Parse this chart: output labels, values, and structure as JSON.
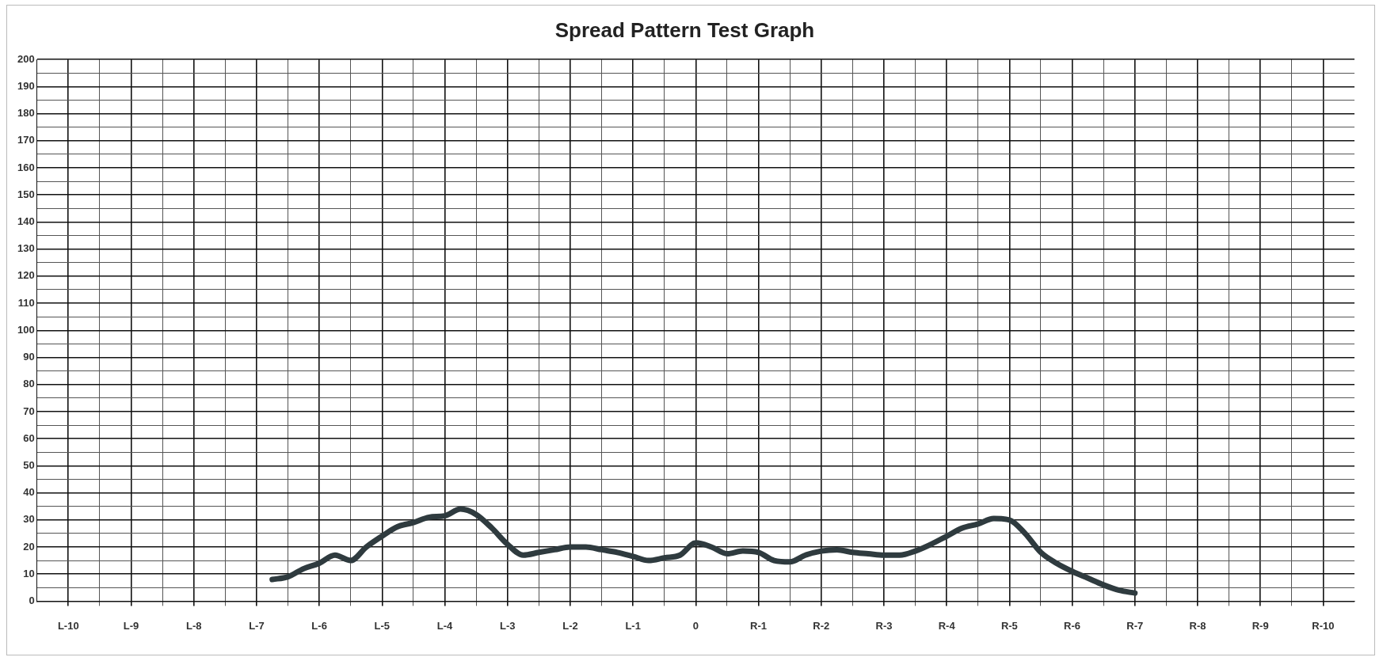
{
  "chart_data": {
    "type": "line",
    "title": "Spread Pattern Test Graph",
    "categories": [
      "L-10",
      null,
      null,
      null,
      "L-9",
      null,
      null,
      null,
      "L-8",
      null,
      null,
      null,
      "L-7",
      null,
      null,
      null,
      "L-6",
      null,
      null,
      null,
      "L-5",
      null,
      null,
      null,
      "L-4",
      null,
      null,
      null,
      "L-3",
      null,
      null,
      null,
      "L-2",
      null,
      null,
      null,
      "L-1",
      null,
      null,
      null,
      "0",
      null,
      null,
      null,
      "R-1",
      null,
      null,
      null,
      "R-2",
      null,
      null,
      null,
      "R-3",
      null,
      null,
      null,
      "R-4",
      null,
      null,
      null,
      "R-5",
      null,
      null,
      null,
      "R-6",
      null,
      null,
      null,
      "R-7",
      null,
      null,
      null,
      "R-8",
      null,
      null,
      null,
      "R-9",
      null,
      null,
      null,
      "R-10"
    ],
    "ylim": [
      0,
      200
    ],
    "yticks": [
      0,
      {
        "value": 5,
        "label": null
      },
      10,
      {
        "value": 15,
        "label": null
      },
      20,
      {
        "value": 25,
        "label": null
      },
      30,
      {
        "value": 35,
        "label": null
      },
      40,
      {
        "value": 45,
        "label": null
      },
      50,
      {
        "value": 55,
        "label": null
      },
      60,
      {
        "value": 65,
        "label": null
      },
      70,
      {
        "value": 75,
        "label": null
      },
      80,
      {
        "value": 85,
        "label": null
      },
      90,
      {
        "value": 95,
        "label": null
      },
      100,
      {
        "value": 105,
        "label": null
      },
      110,
      {
        "value": 115,
        "label": null
      },
      120,
      {
        "value": 125,
        "label": null
      },
      130,
      {
        "value": 135,
        "label": null
      },
      140,
      {
        "value": 145,
        "label": null
      },
      150,
      {
        "value": 155,
        "label": null
      },
      160,
      {
        "value": 165,
        "label": null
      },
      170,
      {
        "value": 175,
        "label": null
      },
      180,
      {
        "value": 185,
        "label": null
      },
      190,
      {
        "value": 195,
        "label": null
      },
      200
    ],
    "grid": true,
    "marker": "none",
    "line_style": "solid",
    "series": [
      {
        "color": "#2f3b3f",
        "values": [
          null,
          null,
          null,
          null,
          null,
          null,
          null,
          null,
          null,
          null,
          null,
          null,
          null,
          8,
          9,
          12,
          14,
          17,
          15,
          20,
          24,
          27.5,
          29,
          31,
          31.5,
          34,
          32,
          27,
          21,
          17,
          18,
          19,
          20,
          20,
          19,
          18,
          16.5,
          15,
          16,
          17,
          21.5,
          20,
          17.5,
          18.5,
          18,
          15,
          14.5,
          17,
          18.5,
          19,
          18,
          17.5,
          17,
          17,
          18.5,
          21,
          24,
          27,
          28.5,
          30.5,
          30,
          25,
          18,
          14,
          11,
          8.5,
          6,
          4,
          3,
          null,
          null,
          null,
          null,
          null,
          null,
          null,
          null,
          null,
          null,
          null,
          null
        ]
      }
    ]
  }
}
